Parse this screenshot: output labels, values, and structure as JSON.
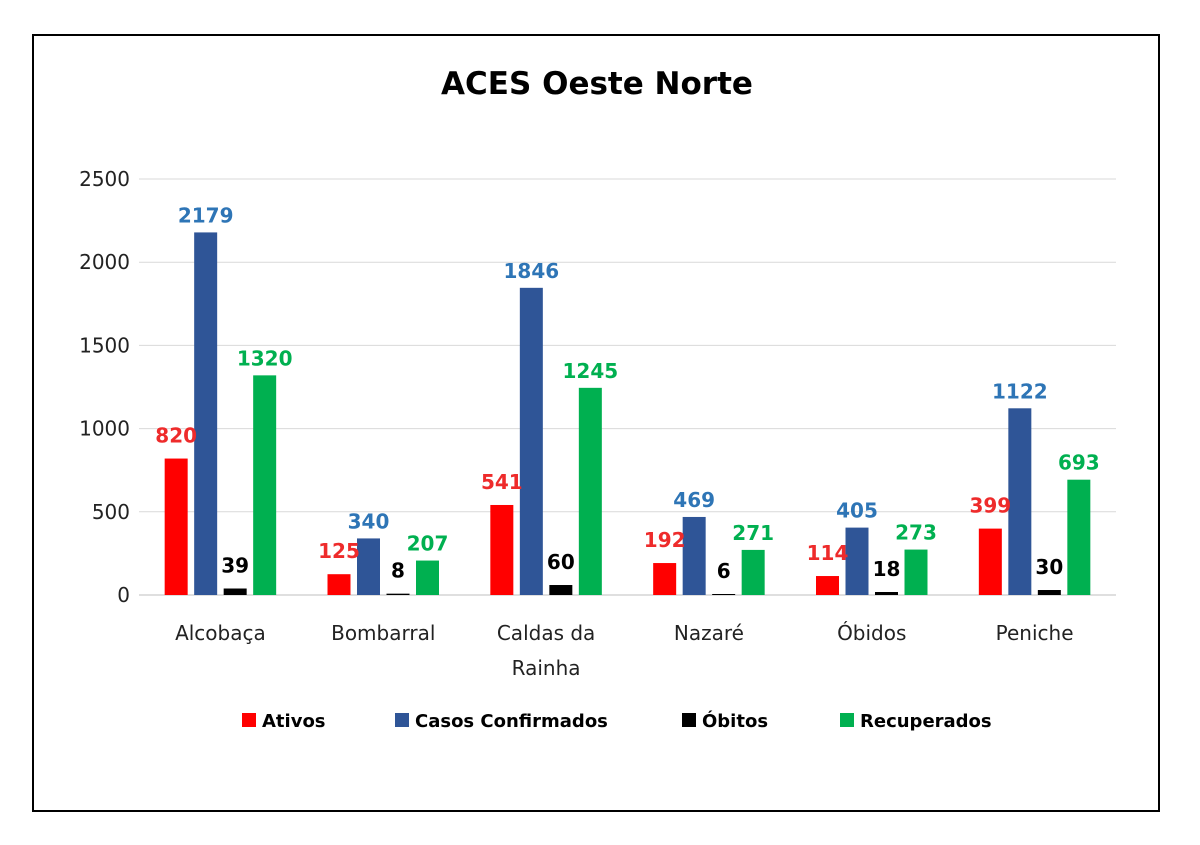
{
  "chart_data": {
    "type": "bar",
    "title": "ACES Oeste Norte",
    "categories": [
      [
        "Alcobaça"
      ],
      [
        "Bombarral"
      ],
      [
        "Caldas da",
        "Rainha"
      ],
      [
        "Nazaré"
      ],
      [
        "Óbidos"
      ],
      [
        "Peniche"
      ]
    ],
    "series": [
      {
        "name": "Ativos",
        "color": "#ff0000",
        "label_color": "#ee2b2b",
        "values": [
          820,
          125,
          541,
          192,
          114,
          399
        ]
      },
      {
        "name": "Casos Confirmados",
        "color": "#2f5597",
        "label_color": "#2e75b6",
        "values": [
          2179,
          340,
          1846,
          469,
          405,
          1122
        ]
      },
      {
        "name": "Óbitos",
        "color": "#000000",
        "label_color": "#000000",
        "values": [
          39,
          8,
          60,
          6,
          18,
          30
        ]
      },
      {
        "name": "Recuperados",
        "color": "#00b050",
        "label_color": "#00b050",
        "values": [
          1320,
          207,
          1245,
          271,
          273,
          693
        ]
      }
    ],
    "yticks": [
      0,
      500,
      1000,
      1500,
      2000,
      2500
    ],
    "ylim": [
      0,
      2500
    ],
    "grid": true,
    "legend": "bottom"
  }
}
